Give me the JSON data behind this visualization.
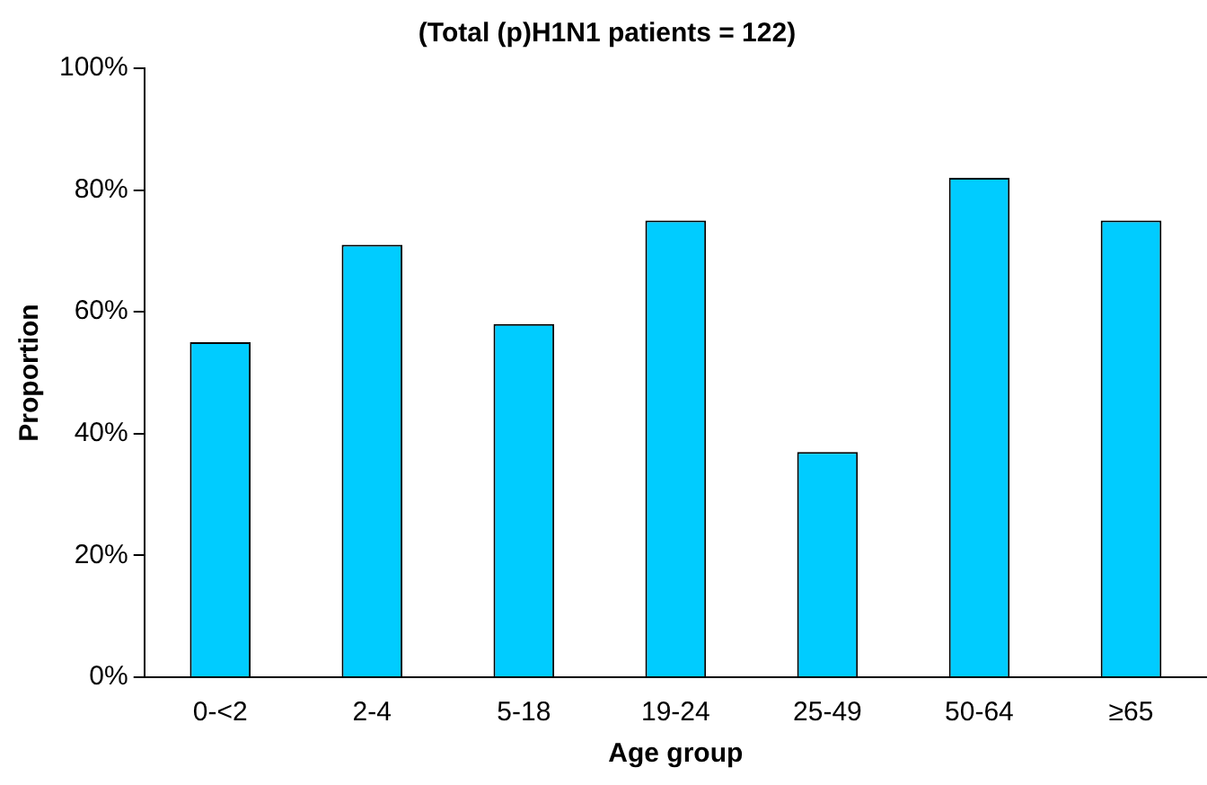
{
  "chart_data": {
    "type": "bar",
    "title": "(Total (p)H1N1 patients = 122)",
    "xlabel": "Age group",
    "ylabel": "Proportion",
    "categories": [
      "0-<2",
      "2-4",
      "5-18",
      "19-24",
      "25-49",
      "50-64",
      "≥65"
    ],
    "values": [
      55,
      71,
      58,
      75,
      37,
      82,
      75
    ],
    "color": "#00ccff",
    "ylim": [
      0,
      100
    ],
    "yticks": [
      {
        "value": 0,
        "label": "0%"
      },
      {
        "value": 20,
        "label": "20%"
      },
      {
        "value": 40,
        "label": "40%"
      },
      {
        "value": 60,
        "label": "60%"
      },
      {
        "value": 80,
        "label": "80%"
      },
      {
        "value": 100,
        "label": "100%"
      }
    ],
    "grid": false,
    "legend": false
  }
}
